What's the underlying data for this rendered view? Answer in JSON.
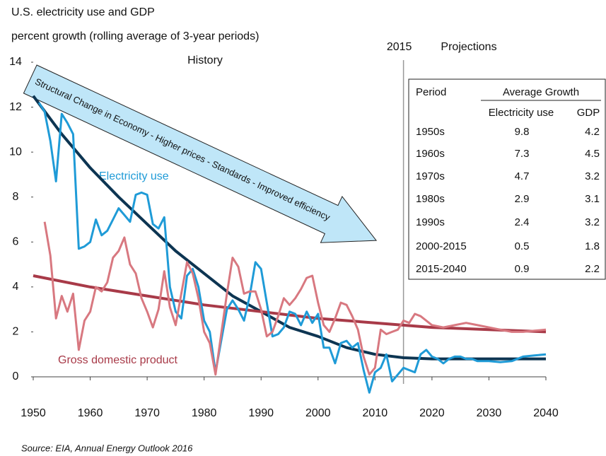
{
  "chart_data": {
    "type": "line",
    "title": "U.S. electricity use and GDP",
    "subtitle": "percent growth (rolling average of 3-year periods)",
    "xlim": [
      1950,
      2040
    ],
    "xticks": [
      1950,
      1960,
      1970,
      1980,
      1990,
      2000,
      2010,
      2020,
      2030,
      2040
    ],
    "ylim": [
      0,
      14
    ],
    "yticks": [
      0,
      2,
      4,
      6,
      8,
      10,
      12,
      14
    ],
    "grid": false,
    "series": [
      {
        "name": "Electricity use",
        "color": "#1f9bd7",
        "x": [
          1951,
          1952,
          1953,
          1954,
          1955,
          1956,
          1957,
          1958,
          1959,
          1960,
          1961,
          1962,
          1963,
          1964,
          1965,
          1966,
          1967,
          1968,
          1969,
          1970,
          1971,
          1972,
          1973,
          1974,
          1975,
          1976,
          1977,
          1978,
          1979,
          1980,
          1981,
          1982,
          1983,
          1984,
          1985,
          1986,
          1987,
          1988,
          1989,
          1990,
          1991,
          1992,
          1993,
          1994,
          1995,
          1996,
          1997,
          1998,
          1999,
          2000,
          2001,
          2002,
          2003,
          2004,
          2005,
          2006,
          2007,
          2008,
          2009,
          2010,
          2011,
          2012,
          2013,
          2014,
          2015,
          2016,
          2017,
          2018,
          2019,
          2020,
          2021,
          2022,
          2023,
          2024,
          2025,
          2026,
          2027,
          2028,
          2030,
          2032,
          2034,
          2036,
          2038,
          2040
        ],
        "values": [
          12.2,
          11.8,
          10.5,
          8.7,
          11.7,
          11.3,
          10.8,
          5.7,
          5.8,
          6.0,
          7.0,
          6.3,
          6.5,
          7.0,
          7.5,
          7.2,
          6.9,
          8.1,
          8.2,
          8.1,
          6.8,
          6.6,
          7.1,
          4.0,
          2.9,
          2.6,
          4.5,
          4.8,
          4.0,
          2.5,
          2.0,
          0.2,
          1.6,
          3.0,
          3.4,
          3.0,
          2.5,
          3.6,
          5.1,
          4.8,
          3.3,
          1.8,
          1.9,
          2.2,
          2.9,
          2.8,
          2.3,
          2.9,
          2.4,
          2.8,
          1.3,
          1.3,
          0.6,
          1.5,
          1.6,
          1.3,
          1.5,
          0.3,
          -0.7,
          0.2,
          0.4,
          1.0,
          -0.2,
          0.1,
          0.4,
          0.3,
          0.2,
          1.0,
          1.2,
          0.9,
          0.8,
          0.6,
          0.8,
          0.9,
          0.9,
          0.8,
          0.8,
          0.7,
          0.7,
          0.65,
          0.7,
          0.9,
          0.95,
          1.0
        ]
      },
      {
        "name": "Gross domestic product",
        "color": "#d87880",
        "x": [
          1952,
          1953,
          1954,
          1955,
          1956,
          1957,
          1958,
          1959,
          1960,
          1961,
          1962,
          1963,
          1964,
          1965,
          1966,
          1967,
          1968,
          1969,
          1970,
          1971,
          1972,
          1973,
          1974,
          1975,
          1976,
          1977,
          1978,
          1979,
          1980,
          1981,
          1982,
          1983,
          1984,
          1985,
          1986,
          1987,
          1988,
          1989,
          1990,
          1991,
          1992,
          1993,
          1994,
          1995,
          1996,
          1997,
          1998,
          1999,
          2000,
          2001,
          2002,
          2003,
          2004,
          2005,
          2006,
          2007,
          2008,
          2009,
          2010,
          2011,
          2012,
          2013,
          2014,
          2015,
          2016,
          2017,
          2018,
          2020,
          2022,
          2024,
          2026,
          2028,
          2030,
          2032,
          2034,
          2036,
          2038,
          2040
        ],
        "values": [
          6.9,
          5.4,
          2.6,
          3.6,
          2.9,
          3.7,
          1.2,
          2.5,
          2.9,
          4.0,
          3.8,
          4.2,
          5.3,
          5.6,
          6.2,
          5.0,
          4.6,
          3.5,
          2.9,
          2.2,
          3.0,
          4.7,
          3.1,
          2.3,
          3.7,
          5.1,
          4.6,
          3.5,
          2.0,
          1.5,
          0.1,
          1.9,
          3.7,
          5.3,
          4.9,
          3.7,
          3.8,
          3.8,
          3.0,
          1.8,
          2.0,
          2.7,
          3.5,
          3.2,
          3.5,
          3.9,
          4.4,
          4.5,
          3.3,
          2.3,
          2.0,
          2.6,
          3.3,
          3.2,
          2.7,
          2.1,
          0.9,
          0.1,
          0.4,
          2.1,
          1.9,
          2.0,
          2.1,
          2.5,
          2.4,
          2.8,
          2.7,
          2.3,
          2.2,
          2.3,
          2.4,
          2.3,
          2.2,
          2.1,
          2.0,
          2.0,
          2.05,
          2.1
        ]
      }
    ],
    "trends": [
      {
        "color": "#0d3552",
        "x": [
          1950,
          1955,
          1960,
          1965,
          1970,
          1975,
          1980,
          1985,
          1990,
          1995,
          2000,
          2005,
          2010,
          2015,
          2020,
          2030,
          2040
        ],
        "values": [
          12.5,
          10.8,
          9.3,
          8.0,
          6.8,
          5.6,
          4.6,
          3.6,
          2.9,
          2.2,
          1.8,
          1.3,
          1.0,
          0.85,
          0.8,
          0.8,
          0.8
        ]
      },
      {
        "color": "#a83a48",
        "x": [
          1950,
          1960,
          1970,
          1980,
          1990,
          2000,
          2010,
          2020,
          2030,
          2040
        ],
        "values": [
          4.5,
          4.0,
          3.6,
          3.2,
          2.9,
          2.6,
          2.4,
          2.2,
          2.1,
          2.0
        ]
      }
    ],
    "divider": {
      "x": 2015,
      "label": "2015"
    },
    "annotations": {
      "history": "History",
      "projections": "Projections",
      "arrow": "Structural Change in Economy - Higher prices - Standards - Improved efficiency"
    },
    "table": {
      "header": [
        "Period",
        "Average Growth"
      ],
      "subheader": [
        "Electricity use",
        "GDP"
      ],
      "rows": [
        [
          "1950s",
          "9.8",
          "4.2"
        ],
        [
          "1960s",
          "7.3",
          "4.5"
        ],
        [
          "1970s",
          "4.7",
          "3.2"
        ],
        [
          "1980s",
          "2.9",
          "3.1"
        ],
        [
          "1990s",
          "2.4",
          "3.2"
        ],
        [
          "2000-2015",
          "0.5",
          "1.8"
        ],
        [
          "2015-2040",
          "0.9",
          "2.2"
        ]
      ]
    },
    "source": "Source:  EIA, Annual Energy Outlook 2016"
  }
}
